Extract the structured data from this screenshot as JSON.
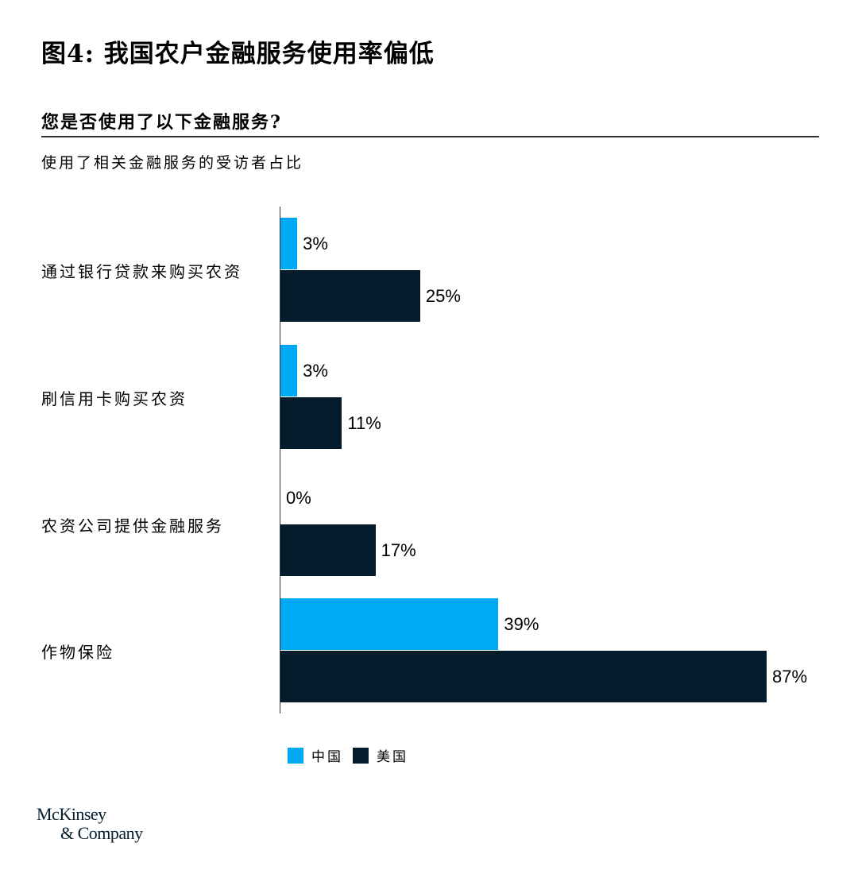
{
  "header": {
    "title": "图4: 我国农户金融服务使用率偏低",
    "question": "您是否使用了以下金融服务?",
    "subtitle": "使用了相关金融服务的受访者占比"
  },
  "colors": {
    "china": "#00A9F4",
    "usa": "#051C2C"
  },
  "legend": [
    {
      "label": "中国",
      "color": "#00A9F4"
    },
    {
      "label": "美国",
      "color": "#051C2C"
    }
  ],
  "logo": {
    "line1": "McKinsey",
    "line2": "& Company"
  },
  "chart_data": {
    "type": "bar",
    "orientation": "horizontal",
    "title": "您是否使用了以下金融服务?",
    "subtitle": "使用了相关金融服务的受访者占比",
    "categories": [
      "通过银行贷款来购买农资",
      "刷信用卡购买农资",
      "农资公司提供金融服务",
      "作物保险"
    ],
    "series": [
      {
        "name": "中国",
        "color": "#00A9F4",
        "values": [
          3,
          3,
          0,
          39
        ],
        "labels": [
          "3%",
          "3%",
          "0%",
          "39%"
        ]
      },
      {
        "name": "美国",
        "color": "#051C2C",
        "values": [
          25,
          11,
          17,
          87
        ],
        "labels": [
          "25%",
          "11%",
          "17%",
          "87%"
        ]
      }
    ],
    "xlabel": "",
    "ylabel": "",
    "xlim": [
      0,
      100
    ],
    "grid": false,
    "legend_position": "bottom",
    "value_unit": "%"
  }
}
